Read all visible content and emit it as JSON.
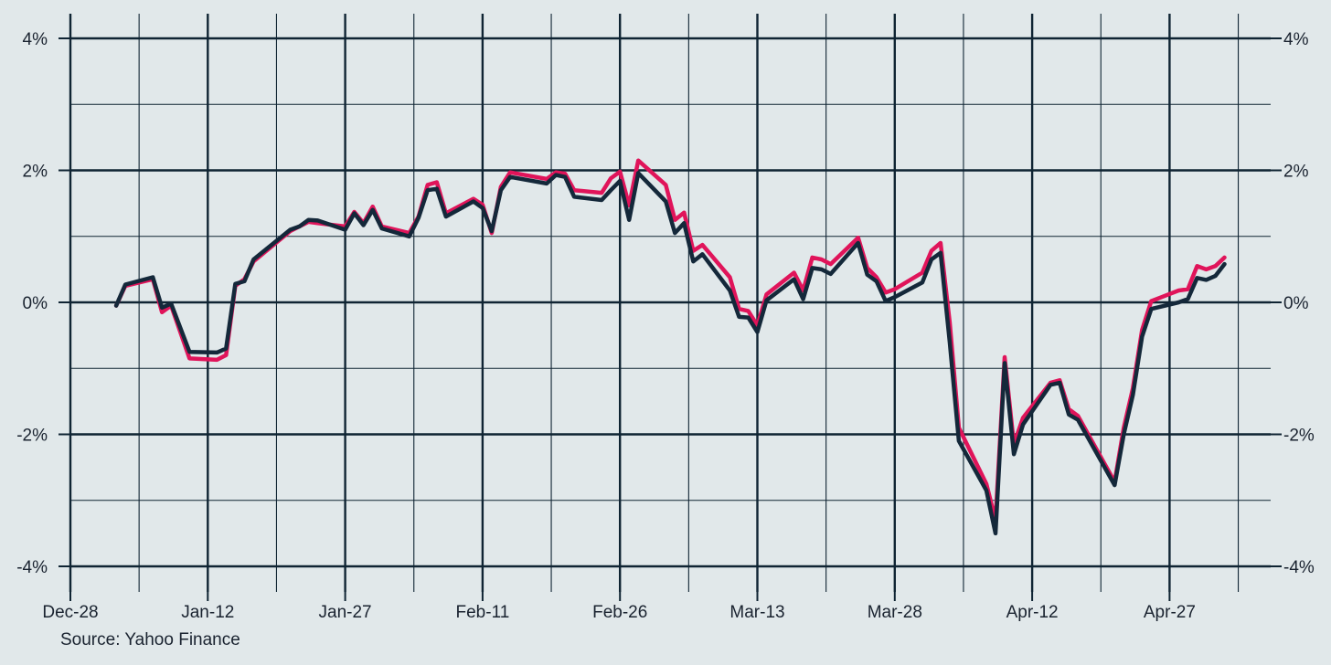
{
  "source": "Source: Yahoo Finance",
  "colors": {
    "background": "#e1e8ea",
    "grid": "#0f2433",
    "series_pink": "#e0145a",
    "series_navy": "#14283a"
  },
  "chart_data": {
    "type": "line",
    "title": "",
    "xlabel": "",
    "ylabel": "",
    "x_ticks": [
      "Dec-28",
      "Jan-12",
      "Jan-27",
      "Feb-11",
      "Feb-26",
      "Mar-13",
      "Mar-28",
      "Apr-12",
      "Apr-27"
    ],
    "y_ticks_left": [
      "4%",
      "2%",
      "0%",
      "-2%",
      "-4%"
    ],
    "y_ticks_right": [
      "4%",
      "2%",
      "0%",
      "-2%",
      "-4%"
    ],
    "ylim": [
      -4,
      4
    ],
    "y_unit": "%",
    "secondary_y_axis": true,
    "grid": true,
    "legend": "none",
    "series": [
      {
        "color": "#e0145a",
        "points": [
          [
            "2025-01-02",
            -0.05
          ],
          [
            "2025-01-03",
            0.25
          ],
          [
            "2025-01-06",
            0.35
          ],
          [
            "2025-01-07",
            -0.15
          ],
          [
            "2025-01-08",
            -0.05
          ],
          [
            "2025-01-10",
            -0.85
          ],
          [
            "2025-01-13",
            -0.87
          ],
          [
            "2025-01-14",
            -0.8
          ],
          [
            "2025-01-15",
            0.25
          ],
          [
            "2025-01-16",
            0.35
          ],
          [
            "2025-01-17",
            0.62
          ],
          [
            "2025-01-21",
            1.08
          ],
          [
            "2025-01-22",
            1.15
          ],
          [
            "2025-01-23",
            1.22
          ],
          [
            "2025-01-24",
            1.2
          ],
          [
            "2025-01-27",
            1.15
          ],
          [
            "2025-01-28",
            1.37
          ],
          [
            "2025-01-29",
            1.2
          ],
          [
            "2025-01-30",
            1.45
          ],
          [
            "2025-01-31",
            1.15
          ],
          [
            "2025-02-03",
            1.05
          ],
          [
            "2025-02-04",
            1.3
          ],
          [
            "2025-02-05",
            1.78
          ],
          [
            "2025-02-06",
            1.82
          ],
          [
            "2025-02-07",
            1.35
          ],
          [
            "2025-02-10",
            1.57
          ],
          [
            "2025-02-11",
            1.48
          ],
          [
            "2025-02-12",
            1.05
          ],
          [
            "2025-02-13",
            1.75
          ],
          [
            "2025-02-14",
            1.97
          ],
          [
            "2025-02-18",
            1.87
          ],
          [
            "2025-02-19",
            1.97
          ],
          [
            "2025-02-20",
            1.95
          ],
          [
            "2025-02-21",
            1.7
          ],
          [
            "2025-02-24",
            1.66
          ],
          [
            "2025-02-25",
            1.88
          ],
          [
            "2025-02-26",
            1.98
          ],
          [
            "2025-02-27",
            1.47
          ],
          [
            "2025-02-28",
            2.15
          ],
          [
            "2025-03-03",
            1.78
          ],
          [
            "2025-03-04",
            1.25
          ],
          [
            "2025-03-05",
            1.36
          ],
          [
            "2025-03-06",
            0.78
          ],
          [
            "2025-03-07",
            0.87
          ],
          [
            "2025-03-10",
            0.38
          ],
          [
            "2025-03-11",
            -0.1
          ],
          [
            "2025-03-12",
            -0.13
          ],
          [
            "2025-03-13",
            -0.35
          ],
          [
            "2025-03-14",
            0.12
          ],
          [
            "2025-03-17",
            0.45
          ],
          [
            "2025-03-18",
            0.18
          ],
          [
            "2025-03-19",
            0.68
          ],
          [
            "2025-03-20",
            0.65
          ],
          [
            "2025-03-21",
            0.58
          ],
          [
            "2025-03-24",
            0.98
          ],
          [
            "2025-03-25",
            0.52
          ],
          [
            "2025-03-26",
            0.38
          ],
          [
            "2025-03-27",
            0.15
          ],
          [
            "2025-03-28",
            0.2
          ],
          [
            "2025-03-31",
            0.45
          ],
          [
            "2025-04-01",
            0.78
          ],
          [
            "2025-04-02",
            0.9
          ],
          [
            "2025-04-03",
            -0.3
          ],
          [
            "2025-04-04",
            -1.9
          ],
          [
            "2025-04-07",
            -2.75
          ],
          [
            "2025-04-08",
            -3.3
          ],
          [
            "2025-04-09",
            -0.83
          ],
          [
            "2025-04-10",
            -2.15
          ],
          [
            "2025-04-11",
            -1.75
          ],
          [
            "2025-04-14",
            -1.22
          ],
          [
            "2025-04-15",
            -1.18
          ],
          [
            "2025-04-16",
            -1.62
          ],
          [
            "2025-04-17",
            -1.72
          ],
          [
            "2025-04-21",
            -2.72
          ],
          [
            "2025-04-22",
            -1.9
          ],
          [
            "2025-04-23",
            -1.3
          ],
          [
            "2025-04-24",
            -0.42
          ],
          [
            "2025-04-25",
            0.02
          ],
          [
            "2025-04-28",
            0.18
          ],
          [
            "2025-04-29",
            0.2
          ],
          [
            "2025-04-30",
            0.55
          ],
          [
            "2025-05-01",
            0.5
          ],
          [
            "2025-05-02",
            0.55
          ],
          [
            "2025-05-03",
            0.68
          ]
        ]
      },
      {
        "color": "#14283a",
        "points": [
          [
            "2025-01-02",
            -0.05
          ],
          [
            "2025-01-03",
            0.27
          ],
          [
            "2025-01-06",
            0.38
          ],
          [
            "2025-01-07",
            -0.08
          ],
          [
            "2025-01-08",
            -0.02
          ],
          [
            "2025-01-10",
            -0.75
          ],
          [
            "2025-01-13",
            -0.76
          ],
          [
            "2025-01-14",
            -0.7
          ],
          [
            "2025-01-15",
            0.28
          ],
          [
            "2025-01-16",
            0.32
          ],
          [
            "2025-01-17",
            0.65
          ],
          [
            "2025-01-21",
            1.1
          ],
          [
            "2025-01-22",
            1.15
          ],
          [
            "2025-01-23",
            1.25
          ],
          [
            "2025-01-24",
            1.24
          ],
          [
            "2025-01-27",
            1.1
          ],
          [
            "2025-01-28",
            1.35
          ],
          [
            "2025-01-29",
            1.17
          ],
          [
            "2025-01-30",
            1.4
          ],
          [
            "2025-01-31",
            1.12
          ],
          [
            "2025-02-03",
            1.0
          ],
          [
            "2025-02-04",
            1.28
          ],
          [
            "2025-02-05",
            1.7
          ],
          [
            "2025-02-06",
            1.72
          ],
          [
            "2025-02-07",
            1.3
          ],
          [
            "2025-02-10",
            1.53
          ],
          [
            "2025-02-11",
            1.43
          ],
          [
            "2025-02-12",
            1.08
          ],
          [
            "2025-02-13",
            1.7
          ],
          [
            "2025-02-14",
            1.9
          ],
          [
            "2025-02-18",
            1.8
          ],
          [
            "2025-02-19",
            1.93
          ],
          [
            "2025-02-20",
            1.9
          ],
          [
            "2025-02-21",
            1.6
          ],
          [
            "2025-02-24",
            1.55
          ],
          [
            "2025-02-25",
            1.7
          ],
          [
            "2025-02-26",
            1.84
          ],
          [
            "2025-02-27",
            1.25
          ],
          [
            "2025-02-28",
            1.96
          ],
          [
            "2025-03-03",
            1.53
          ],
          [
            "2025-03-04",
            1.05
          ],
          [
            "2025-03-05",
            1.2
          ],
          [
            "2025-03-06",
            0.62
          ],
          [
            "2025-03-07",
            0.73
          ],
          [
            "2025-03-10",
            0.18
          ],
          [
            "2025-03-11",
            -0.22
          ],
          [
            "2025-03-12",
            -0.23
          ],
          [
            "2025-03-13",
            -0.45
          ],
          [
            "2025-03-14",
            0.03
          ],
          [
            "2025-03-17",
            0.35
          ],
          [
            "2025-03-18",
            0.05
          ],
          [
            "2025-03-19",
            0.52
          ],
          [
            "2025-03-20",
            0.5
          ],
          [
            "2025-03-21",
            0.43
          ],
          [
            "2025-03-24",
            0.9
          ],
          [
            "2025-03-25",
            0.42
          ],
          [
            "2025-03-26",
            0.32
          ],
          [
            "2025-03-27",
            0.02
          ],
          [
            "2025-03-28",
            0.08
          ],
          [
            "2025-03-31",
            0.3
          ],
          [
            "2025-04-01",
            0.65
          ],
          [
            "2025-04-02",
            0.75
          ],
          [
            "2025-04-03",
            -0.6
          ],
          [
            "2025-04-04",
            -2.1
          ],
          [
            "2025-04-07",
            -2.85
          ],
          [
            "2025-04-08",
            -3.5
          ],
          [
            "2025-04-09",
            -0.92
          ],
          [
            "2025-04-10",
            -2.3
          ],
          [
            "2025-04-11",
            -1.85
          ],
          [
            "2025-04-14",
            -1.25
          ],
          [
            "2025-04-15",
            -1.22
          ],
          [
            "2025-04-16",
            -1.7
          ],
          [
            "2025-04-17",
            -1.78
          ],
          [
            "2025-04-21",
            -2.77
          ],
          [
            "2025-04-22",
            -2.0
          ],
          [
            "2025-04-23",
            -1.4
          ],
          [
            "2025-04-24",
            -0.52
          ],
          [
            "2025-04-25",
            -0.1
          ],
          [
            "2025-04-28",
            0.0
          ],
          [
            "2025-04-29",
            0.05
          ],
          [
            "2025-04-30",
            0.37
          ],
          [
            "2025-05-01",
            0.34
          ],
          [
            "2025-05-02",
            0.4
          ],
          [
            "2025-05-03",
            0.58
          ]
        ]
      }
    ]
  }
}
